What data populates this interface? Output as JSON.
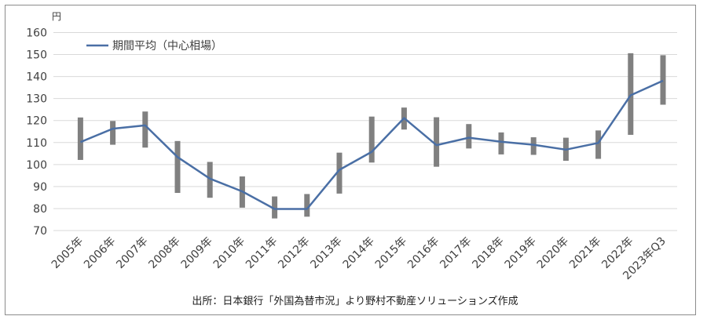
{
  "chart_data": {
    "type": "line",
    "unit_label": "円",
    "ylim": [
      70,
      160
    ],
    "yticks": [
      70,
      80,
      90,
      100,
      110,
      120,
      130,
      140,
      150,
      160
    ],
    "categories": [
      "2005年",
      "2006年",
      "2007年",
      "2008年",
      "2009年",
      "2010年",
      "2011年",
      "2012年",
      "2013年",
      "2014年",
      "2015年",
      "2016年",
      "2017年",
      "2018年",
      "2019年",
      "2020年",
      "2021年",
      "2022年",
      "2023年Q3"
    ],
    "series": [
      {
        "name": "期間平均（中心相場）",
        "color": "#4a6fa5",
        "values": [
          110.2,
          116.3,
          117.8,
          103.4,
          93.6,
          87.8,
          79.8,
          79.8,
          97.6,
          105.8,
          121.1,
          108.8,
          112.2,
          110.4,
          109.0,
          106.8,
          109.8,
          131.5,
          138.1
        ]
      }
    ],
    "ranges": {
      "color": "#808080",
      "high": [
        121.4,
        119.8,
        124.1,
        110.7,
        101.2,
        94.6,
        85.5,
        86.6,
        105.4,
        121.8,
        125.9,
        121.5,
        118.4,
        114.6,
        112.4,
        112.2,
        115.5,
        150.6,
        149.7
      ],
      "low": [
        102.1,
        109.0,
        107.7,
        87.1,
        84.9,
        80.4,
        75.5,
        76.3,
        86.8,
        100.9,
        115.9,
        99.0,
        107.3,
        104.6,
        104.4,
        101.7,
        102.6,
        113.5,
        127.2
      ]
    },
    "grid": true,
    "legend_position": "top-left"
  },
  "caption": "出所：日本銀行「外国為替市況」より野村不動産ソリューションズ作成"
}
